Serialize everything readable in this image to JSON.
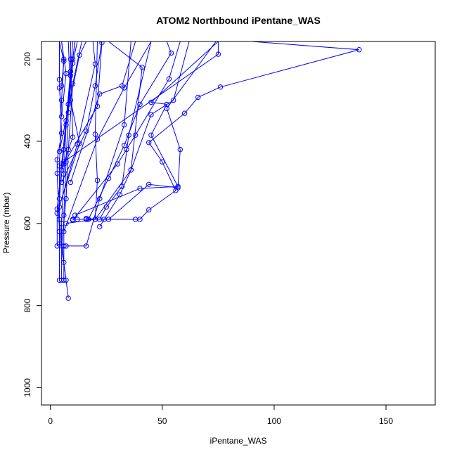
{
  "chart_data": {
    "type": "line",
    "title": "ATOM2 Northbound iPentane_WAS",
    "xlabel": "iPentane_WAS",
    "ylabel": "Pressure (mbar)",
    "xlim": [
      -4,
      172
    ],
    "ylim": [
      1042,
      157
    ],
    "y_reversed": true,
    "x_ticks": [
      0,
      50,
      100,
      150
    ],
    "y_ticks": [
      200,
      400,
      600,
      800,
      1000
    ],
    "grid": false,
    "legend": "none",
    "series_color": "#0000ff",
    "series": [
      {
        "values": [
          [
            3,
            655
          ],
          [
            3,
            565
          ],
          [
            5,
            455
          ],
          [
            7,
            350
          ],
          [
            9,
            230
          ],
          [
            10,
            157
          ]
        ]
      },
      {
        "values": [
          [
            4,
            738
          ],
          [
            4,
            650
          ],
          [
            4,
            540
          ],
          [
            6,
            420
          ],
          [
            8,
            310
          ],
          [
            10,
            200
          ],
          [
            11,
            157
          ]
        ]
      },
      {
        "values": [
          [
            5,
            738
          ],
          [
            5,
            600
          ],
          [
            6,
            480
          ],
          [
            7,
            360
          ],
          [
            9,
            240
          ],
          [
            11,
            157
          ]
        ]
      },
      {
        "values": [
          [
            6,
            738
          ],
          [
            6,
            655
          ],
          [
            6,
            580
          ],
          [
            7,
            450
          ],
          [
            8,
            330
          ],
          [
            10,
            210
          ],
          [
            12,
            157
          ]
        ]
      },
      {
        "values": [
          [
            7,
            738
          ],
          [
            4,
            620
          ],
          [
            3,
            478
          ],
          [
            3,
            445
          ],
          [
            5,
            380
          ],
          [
            4,
            250
          ],
          [
            4,
            157
          ]
        ]
      },
      {
        "values": [
          [
            8,
            782
          ],
          [
            6,
            695
          ],
          [
            4,
            590
          ],
          [
            4,
            460
          ],
          [
            5,
            300
          ],
          [
            6,
            200
          ],
          [
            5,
            157
          ]
        ]
      },
      {
        "values": [
          [
            5,
            655
          ],
          [
            7,
            540
          ],
          [
            8,
            420
          ],
          [
            10,
            260
          ],
          [
            14,
            157
          ]
        ]
      },
      {
        "values": [
          [
            7,
            655
          ],
          [
            16,
            655
          ],
          [
            22,
            540
          ],
          [
            33,
            360
          ],
          [
            36,
            157
          ]
        ]
      },
      {
        "values": [
          [
            3,
            575
          ],
          [
            13,
            405
          ],
          [
            9,
            300
          ],
          [
            8,
            157
          ]
        ]
      },
      {
        "values": [
          [
            16,
            590
          ],
          [
            20,
            590
          ],
          [
            21,
            495
          ],
          [
            20,
            383
          ],
          [
            21,
            157
          ]
        ]
      },
      {
        "values": [
          [
            10,
            592
          ],
          [
            30,
            455
          ],
          [
            34,
            420
          ],
          [
            38,
            385
          ],
          [
            53,
            248
          ],
          [
            58,
            157
          ]
        ]
      },
      {
        "values": [
          [
            22,
            608
          ],
          [
            31,
            530
          ],
          [
            36,
            470
          ],
          [
            45,
            335
          ],
          [
            55,
            300
          ],
          [
            62,
            157
          ]
        ]
      },
      {
        "values": [
          [
            24,
            590
          ],
          [
            26,
            590
          ],
          [
            44,
            505
          ],
          [
            57,
            513
          ],
          [
            58,
            420
          ],
          [
            52,
            320
          ],
          [
            74,
            157
          ]
        ]
      },
      {
        "values": [
          [
            10,
            590
          ],
          [
            38,
            590
          ],
          [
            40,
            590
          ],
          [
            44,
            567
          ],
          [
            56,
            520
          ],
          [
            50,
            450
          ],
          [
            44,
            403
          ],
          [
            60,
            332
          ],
          [
            66,
            293
          ],
          [
            76,
            268
          ],
          [
            138,
            177
          ],
          [
            90,
            157
          ]
        ]
      },
      {
        "values": [
          [
            11,
            580
          ],
          [
            40,
            515
          ],
          [
            57,
            510
          ],
          [
            45,
            385
          ],
          [
            52,
            310
          ],
          [
            45,
            305
          ],
          [
            75,
            157
          ]
        ]
      },
      {
        "values": [
          [
            16,
            588
          ],
          [
            22,
            590
          ],
          [
            25,
            560
          ],
          [
            32,
            510
          ],
          [
            35,
            385
          ],
          [
            45,
            157
          ]
        ]
      },
      {
        "values": [
          [
            12,
            590
          ],
          [
            17,
            590
          ],
          [
            26,
            490
          ],
          [
            33,
            410
          ],
          [
            40,
            310
          ],
          [
            54,
            185
          ],
          [
            52,
            157
          ]
        ]
      },
      {
        "values": [
          [
            7,
            600
          ],
          [
            20,
            590
          ],
          [
            36,
            470
          ],
          [
            41,
            220
          ],
          [
            26,
            157
          ]
        ]
      },
      {
        "values": [
          [
            5,
            500
          ],
          [
            16,
            375
          ],
          [
            20,
            265
          ],
          [
            23,
            157
          ]
        ]
      },
      {
        "values": [
          [
            4,
            560
          ],
          [
            12,
            407
          ],
          [
            20,
            212
          ],
          [
            19,
            157
          ]
        ]
      },
      {
        "values": [
          [
            6,
            455
          ],
          [
            21,
            315
          ],
          [
            23,
            160
          ],
          [
            22,
            157
          ]
        ]
      },
      {
        "values": [
          [
            9,
            500
          ],
          [
            22,
            285
          ],
          [
            32,
            265
          ],
          [
            38,
            157
          ]
        ]
      },
      {
        "values": [
          [
            6,
            450
          ],
          [
            75,
            188
          ],
          [
            75,
            157
          ]
        ]
      },
      {
        "values": [
          [
            4,
            425
          ],
          [
            13,
            190
          ],
          [
            16,
            157
          ]
        ]
      },
      {
        "values": [
          [
            5,
            470
          ],
          [
            10,
            390
          ],
          [
            9,
            200
          ],
          [
            9,
            157
          ]
        ]
      },
      {
        "values": [
          [
            5,
            265
          ],
          [
            6,
            205
          ],
          [
            4,
            157
          ]
        ]
      },
      {
        "values": [
          [
            4,
            270
          ],
          [
            5,
            340
          ],
          [
            7,
            235
          ],
          [
            5,
            157
          ]
        ]
      },
      {
        "values": [
          [
            6,
            620
          ],
          [
            21,
            395
          ],
          [
            33,
            270
          ],
          [
            45,
            157
          ]
        ]
      }
    ]
  }
}
